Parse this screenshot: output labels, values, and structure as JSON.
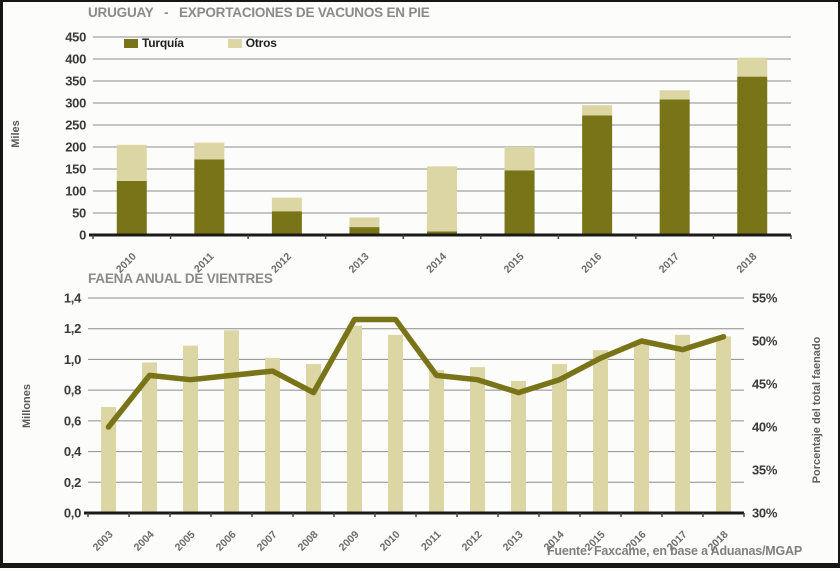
{
  "page": {
    "footer": "Fuente: Faxcame, en base a Aduanas/MGAP"
  },
  "colors": {
    "dark_olive": "#7a7418",
    "light_khaki": "#dcd6a4",
    "grid_gray": "#8c8c8c",
    "axis_black": "#1a1a1a",
    "title_gray": "#8a8a8a"
  },
  "chart_data": [
    {
      "type": "bar",
      "stacked": true,
      "title": "URUGUAY   -   EXPORTACIONES DE VACUNOS EN PIE",
      "ylabel": "Miles",
      "categories": [
        "2010",
        "2011",
        "2012",
        "2013",
        "2014",
        "2015",
        "2016",
        "2017",
        "2018"
      ],
      "series": [
        {
          "name": "Turquía",
          "color": "#7a7418",
          "values": [
            123,
            172,
            54,
            18,
            8,
            147,
            272,
            308,
            360
          ]
        },
        {
          "name": "Otros",
          "color": "#dcd6a4",
          "values": [
            82,
            38,
            31,
            22,
            148,
            53,
            23,
            21,
            43
          ]
        }
      ],
      "ylim": [
        0,
        450
      ],
      "ytick_step": 50,
      "grid": true,
      "legend_position": "top-left-inside"
    },
    {
      "type": "bar+line",
      "title": "FAENA ANUAL DE VIENTRES",
      "ylabel_left": "Millones",
      "ylabel_right": "Porcentaje del total faenado",
      "categories": [
        "2003",
        "2004",
        "2005",
        "2006",
        "2007",
        "2008",
        "2009",
        "2010",
        "2011",
        "2012",
        "2013",
        "2014",
        "2015",
        "2016",
        "2017",
        "2018"
      ],
      "bars": {
        "color": "#dcd6a4",
        "values": [
          0.69,
          0.98,
          1.09,
          1.19,
          1.01,
          0.97,
          1.22,
          1.16,
          0.93,
          0.95,
          0.86,
          0.97,
          1.06,
          1.12,
          1.16,
          1.15
        ]
      },
      "line": {
        "color": "#7a7418",
        "values_pct": [
          40,
          46,
          45.5,
          46,
          46.5,
          44,
          52.5,
          52.5,
          46,
          45.5,
          44,
          45.5,
          48,
          50,
          49,
          50.5
        ]
      },
      "ylim_left": [
        0,
        1.4
      ],
      "ytick_step_left": 0.2,
      "ylim_right_pct": [
        30,
        55
      ],
      "ytick_step_right_pct": 5,
      "grid": true
    }
  ]
}
